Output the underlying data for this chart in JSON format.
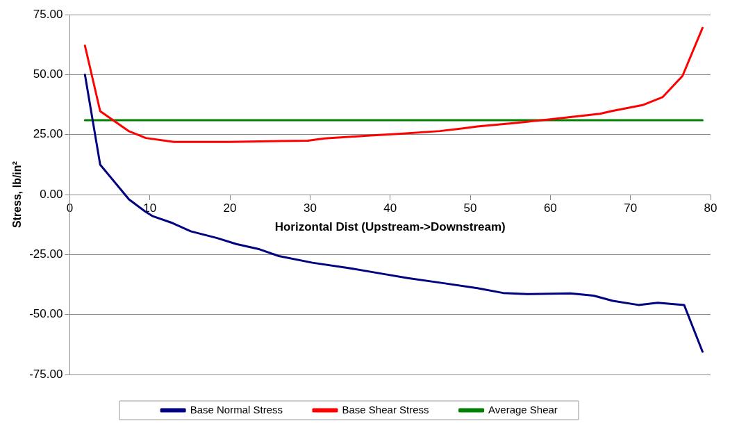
{
  "chart_data": {
    "type": "line",
    "xlabel": "Horizontal Dist (Upstream->Downstream)",
    "ylabel": "Stress, lb/in²",
    "xlim": [
      0,
      80
    ],
    "xticks": [
      0,
      10,
      20,
      30,
      40,
      50,
      60,
      70,
      80
    ],
    "ylim": [
      -75,
      75
    ],
    "yticks": [
      {
        "value": -75,
        "label": "-75.00"
      },
      {
        "value": -50,
        "label": "-50.00"
      },
      {
        "value": -25,
        "label": "-25.00"
      },
      {
        "value": 0,
        "label": "0.00"
      },
      {
        "value": 25,
        "label": "25.00"
      },
      {
        "value": 50,
        "label": "50.00"
      },
      {
        "value": 75,
        "label": "75.00"
      }
    ],
    "grid": "y",
    "legend": "bottom",
    "marker": "none",
    "line_style": "solid",
    "series": [
      {
        "name": "Base Normal Stress",
        "color": "#000080",
        "x": [
          1.9,
          3.8,
          7.4,
          9.4,
          10.3,
          12.7,
          15.1,
          18.4,
          20.8,
          23.7,
          26.1,
          30.3,
          34.8,
          39.2,
          42.2,
          46.4,
          50.9,
          54.1,
          57.1,
          62.5,
          65.4,
          67.8,
          71,
          73.4,
          76.7,
          79
        ],
        "values": [
          50,
          12.5,
          -2,
          -7,
          -8.9,
          -11.7,
          -15.3,
          -18.1,
          -20.6,
          -22.8,
          -25.6,
          -28.4,
          -30.6,
          -33.1,
          -34.8,
          -36.8,
          -39,
          -41,
          -41.5,
          -41.2,
          -42.1,
          -44.3,
          -46,
          -45.1,
          -46,
          -65.5
        ]
      },
      {
        "name": "Base Shear Stress",
        "color": "#ff0000",
        "x": [
          1.9,
          3.8,
          7.4,
          9.5,
          13,
          20,
          26.2,
          29.7,
          31.8,
          36.8,
          41.3,
          46.2,
          49.1,
          50.9,
          55.4,
          59.4,
          61.9,
          66.2,
          67.6,
          71.5,
          74,
          76.5,
          79
        ],
        "values": [
          62.1,
          34.8,
          26.4,
          23.6,
          22,
          22,
          22.3,
          22.5,
          23.4,
          24.5,
          25.4,
          26.5,
          27.6,
          28.4,
          29.8,
          31.2,
          32.1,
          33.7,
          34.8,
          37.3,
          40.6,
          49.5,
          69.5
        ]
      },
      {
        "name": "Average Shear",
        "color": "#008000",
        "x": [
          1.9,
          79
        ],
        "values": [
          31,
          31
        ]
      }
    ]
  }
}
